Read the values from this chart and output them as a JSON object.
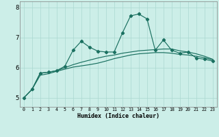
{
  "xlabel": "Humidex (Indice chaleur)",
  "background_color": "#cceee8",
  "grid_color": "#aad8d0",
  "line_color": "#1a7060",
  "x": [
    0,
    1,
    2,
    3,
    4,
    5,
    6,
    7,
    8,
    9,
    10,
    11,
    12,
    13,
    14,
    15,
    16,
    17,
    18,
    19,
    20,
    21,
    22,
    23
  ],
  "line1": [
    5.0,
    5.28,
    5.82,
    5.85,
    5.9,
    6.05,
    6.58,
    6.88,
    6.68,
    6.55,
    6.52,
    6.52,
    7.15,
    7.72,
    7.78,
    7.62,
    6.58,
    6.92,
    6.58,
    6.48,
    6.52,
    6.32,
    6.28,
    6.22
  ],
  "line2": [
    5.0,
    5.28,
    5.82,
    5.85,
    5.9,
    6.0,
    6.1,
    6.18,
    6.25,
    6.32,
    6.38,
    6.42,
    6.48,
    6.52,
    6.56,
    6.58,
    6.6,
    6.62,
    6.62,
    6.56,
    6.52,
    6.46,
    6.38,
    6.28
  ],
  "line3": [
    5.0,
    5.28,
    5.75,
    5.8,
    5.88,
    5.95,
    6.02,
    6.06,
    6.1,
    6.15,
    6.22,
    6.3,
    6.36,
    6.42,
    6.46,
    6.48,
    6.5,
    6.5,
    6.48,
    6.44,
    6.42,
    6.38,
    6.33,
    6.26
  ],
  "ylim": [
    4.7,
    8.2
  ],
  "yticks": [
    5,
    6,
    7,
    8
  ],
  "xticks": [
    0,
    1,
    2,
    3,
    4,
    5,
    6,
    7,
    8,
    9,
    10,
    11,
    12,
    13,
    14,
    15,
    16,
    17,
    18,
    19,
    20,
    21,
    22,
    23
  ]
}
